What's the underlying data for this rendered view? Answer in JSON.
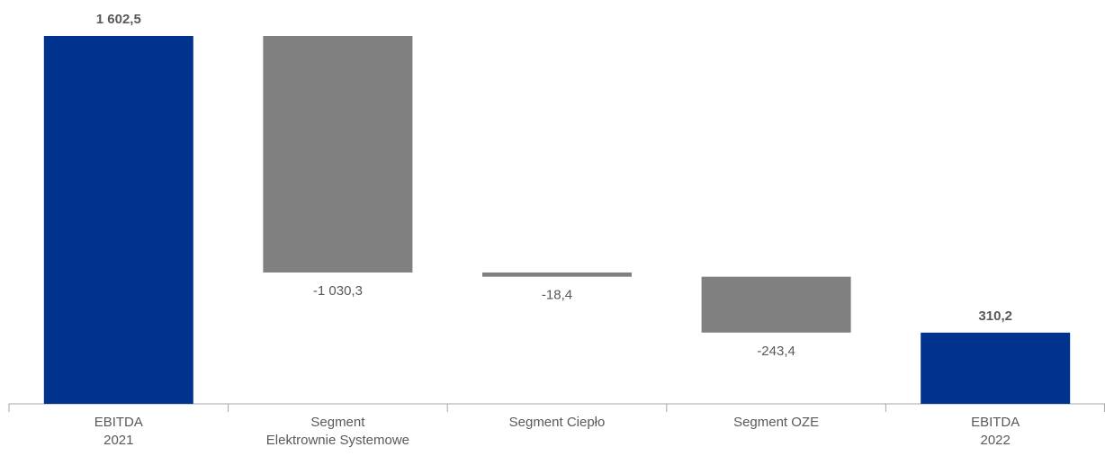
{
  "chart_data": {
    "type": "bar",
    "subtype": "waterfall",
    "categories": [
      [
        "EBITDA",
        "2021"
      ],
      [
        "Segment",
        "Elektrownie Systemowe"
      ],
      [
        "Segment Ciepło"
      ],
      [
        "Segment OZE"
      ],
      [
        "EBITDA",
        "2022"
      ]
    ],
    "values": [
      1602.5,
      -1030.3,
      -18.4,
      -243.4,
      310.2
    ],
    "bar_kind": [
      "total",
      "delta",
      "delta",
      "delta",
      "total"
    ],
    "value_labels": [
      "1 602,5",
      "-1 030,3",
      "-18,4",
      "-243,4",
      "310,2"
    ],
    "title": "",
    "xlabel": "",
    "ylabel": "",
    "ylim": [
      0,
      1602.5
    ],
    "grid": false,
    "legend": "none",
    "colors": {
      "total": "#00338d",
      "delta": "#808080",
      "axis": "#a6a6a6",
      "total_label": "#595959",
      "delta_label": "#595959",
      "category_label": "#595959"
    }
  }
}
